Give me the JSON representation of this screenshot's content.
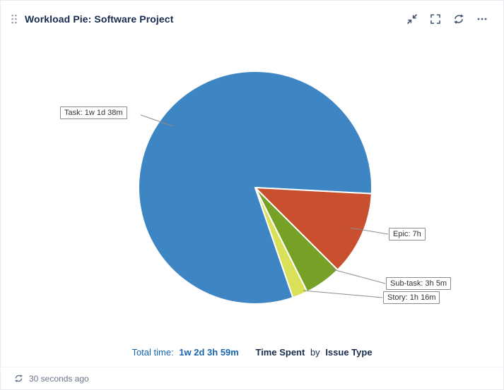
{
  "header": {
    "title": "Workload Pie: Software Project",
    "icons": [
      "minimize-icon",
      "fullscreen-icon",
      "refresh-icon",
      "more-icon"
    ]
  },
  "chart_data": {
    "type": "pie",
    "title": "Workload Pie: Software Project",
    "measure": "Time Spent",
    "dimension": "Issue Type",
    "total_display": "1w 2d 3h 59m",
    "total_minutes": 3599,
    "direction": "clockwise",
    "start_angle_compass": 161.1,
    "legend_position": "callout-labels",
    "slices": [
      {
        "label": "Task",
        "display": "Task: 1w 1d 38m",
        "time": "1w 1d 38m",
        "minutes": 2918,
        "percent": 81.1,
        "angle_deg": 291.9,
        "color": "#3e85c3"
      },
      {
        "label": "Epic",
        "display": "Epic: 7h",
        "time": "7h",
        "minutes": 420,
        "percent": 11.7,
        "angle_deg": 42.0,
        "color": "#c8502f"
      },
      {
        "label": "Sub-task",
        "display": "Sub-task: 3h 5m",
        "time": "3h 5m",
        "minutes": 185,
        "percent": 5.1,
        "angle_deg": 18.5,
        "color": "#76a126"
      },
      {
        "label": "Story",
        "display": "Story: 1h 16m",
        "time": "1h 16m",
        "minutes": 76,
        "percent": 2.1,
        "angle_deg": 7.6,
        "color": "#dbe059"
      }
    ]
  },
  "caption": {
    "total_label": "Total time:",
    "total_value": "1w 2d 3h 59m",
    "measure": "Time Spent",
    "by": "by",
    "dimension": "Issue Type"
  },
  "footer": {
    "updated": "30 seconds ago"
  },
  "colors": {
    "title_text": "#172b4d",
    "caption_blue": "#1765ad",
    "muted_text": "#6b778c",
    "leader_line": "#8c8c8c"
  }
}
